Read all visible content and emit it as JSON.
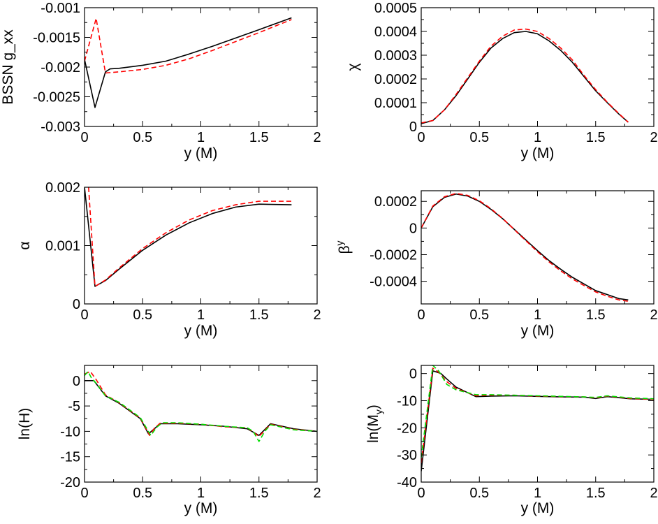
{
  "chart_data": [
    {
      "id": "gxx",
      "type": "line",
      "xlabel": "y (M)",
      "ylabel": "BSSN g_xx",
      "xlim": [
        0,
        2
      ],
      "ylim": [
        -0.003,
        -0.001
      ],
      "xticks": [
        0,
        0.5,
        1,
        1.5,
        2
      ],
      "yticks": [
        -0.003,
        -0.0025,
        -0.002,
        -0.0015,
        -0.001
      ],
      "xtick_labels": [
        "0",
        "0.5",
        "1",
        "1.5",
        "2"
      ],
      "ytick_labels": [
        "-0.003",
        "-0.0025",
        "-0.002",
        "-0.0015",
        "-0.001"
      ],
      "series": [
        {
          "name": "black",
          "color": "#000000",
          "dash": "",
          "x": [
            0,
            0.09,
            0.18,
            0.22,
            0.3,
            0.5,
            0.7,
            0.9,
            1.1,
            1.3,
            1.5,
            1.78
          ],
          "y": [
            -0.00187,
            -0.00268,
            -0.00208,
            -0.00203,
            -0.00202,
            -0.00197,
            -0.0019,
            -0.00178,
            -0.00165,
            -0.00151,
            -0.00137,
            -0.00117
          ]
        },
        {
          "name": "red",
          "color": "#ff0000",
          "dash": "7,4",
          "x": [
            0,
            0.1,
            0.18,
            0.3,
            0.5,
            0.7,
            0.9,
            1.1,
            1.3,
            1.5,
            1.78
          ],
          "y": [
            -0.0019,
            -0.00118,
            -0.0021,
            -0.00208,
            -0.00204,
            -0.00197,
            -0.00186,
            -0.00172,
            -0.00157,
            -0.00142,
            -0.0012
          ]
        }
      ]
    },
    {
      "id": "chi",
      "type": "line",
      "xlabel": "y (M)",
      "ylabel": "χ",
      "xlim": [
        0,
        2
      ],
      "ylim": [
        0,
        0.0005
      ],
      "xticks": [
        0,
        0.5,
        1,
        1.5,
        2
      ],
      "yticks": [
        0,
        0.0001,
        0.0002,
        0.0003,
        0.0004,
        0.0005
      ],
      "xtick_labels": [
        "0",
        "0.5",
        "1",
        "1.5",
        "2"
      ],
      "ytick_labels": [
        "0",
        "0.0001",
        "0.0002",
        "0.0003",
        "0.0004",
        "0.0005"
      ],
      "series": [
        {
          "name": "black",
          "color": "#000000",
          "dash": "",
          "x": [
            0,
            0.1,
            0.2,
            0.3,
            0.4,
            0.5,
            0.6,
            0.7,
            0.8,
            0.9,
            1.0,
            1.1,
            1.2,
            1.3,
            1.4,
            1.5,
            1.6,
            1.7,
            1.78
          ],
          "y": [
            1.2e-05,
            2.5e-05,
            7e-05,
            0.00013,
            0.0002,
            0.00027,
            0.00033,
            0.00037,
            0.000395,
            0.0004,
            0.00039,
            0.00036,
            0.00032,
            0.00027,
            0.00021,
            0.00015,
            0.0001,
            5.2e-05,
            1.8e-05
          ]
        },
        {
          "name": "red",
          "color": "#ff0000",
          "dash": "7,4",
          "x": [
            0,
            0.1,
            0.2,
            0.3,
            0.4,
            0.5,
            0.6,
            0.7,
            0.8,
            0.9,
            1.0,
            1.1,
            1.2,
            1.3,
            1.4,
            1.5,
            1.6,
            1.7,
            1.78
          ],
          "y": [
            1.5e-05,
            2.5e-05,
            7e-05,
            0.000135,
            0.000205,
            0.000275,
            0.000338,
            0.00038,
            0.000406,
            0.00041,
            0.0004,
            0.00037,
            0.00033,
            0.00028,
            0.000215,
            0.000155,
            0.000102,
            5.4e-05,
            1.8e-05
          ]
        }
      ]
    },
    {
      "id": "alpha",
      "type": "line",
      "xlabel": "y (M)",
      "ylabel": "α",
      "xlim": [
        0,
        2
      ],
      "ylim": [
        0,
        0.002
      ],
      "xticks": [
        0,
        0.5,
        1,
        1.5,
        2
      ],
      "yticks": [
        0,
        0.001,
        0.002
      ],
      "xtick_labels": [
        "0",
        "0.5",
        "1",
        "1.5",
        "2"
      ],
      "ytick_labels": [
        "0",
        "0.001",
        "0.002"
      ],
      "series": [
        {
          "name": "black",
          "color": "#000000",
          "dash": "",
          "x": [
            0,
            0.09,
            0.18,
            0.3,
            0.5,
            0.7,
            0.9,
            1.1,
            1.3,
            1.5,
            1.78
          ],
          "y": [
            0.002,
            0.0003,
            0.0004,
            0.0006,
            0.00092,
            0.00118,
            0.00139,
            0.00155,
            0.00166,
            0.00171,
            0.0017
          ]
        },
        {
          "name": "red",
          "color": "#ff0000",
          "dash": "7,4",
          "x": [
            0.035,
            0.09,
            0.18,
            0.3,
            0.5,
            0.7,
            0.9,
            1.1,
            1.3,
            1.5,
            1.78
          ],
          "y": [
            0.002,
            0.0003,
            0.00041,
            0.00062,
            0.00095,
            0.00122,
            0.00144,
            0.0016,
            0.0017,
            0.00176,
            0.00176
          ]
        }
      ]
    },
    {
      "id": "betay",
      "type": "line",
      "xlabel": "y (M)",
      "ylabel": "β",
      "ylabel_sup": "y",
      "xlim": [
        0,
        2
      ],
      "ylim": [
        -0.00057,
        0.00028
      ],
      "xticks": [
        0,
        0.5,
        1,
        1.5,
        2
      ],
      "yticks": [
        -0.0004,
        -0.0002,
        0,
        0.0002
      ],
      "xtick_labels": [
        "0",
        "0.5",
        "1",
        "1.5",
        "2"
      ],
      "ytick_labels": [
        "-0.0004",
        "-0.0002",
        "0",
        "0.0002"
      ],
      "series": [
        {
          "name": "black",
          "color": "#000000",
          "dash": "",
          "x": [
            0,
            0.1,
            0.2,
            0.3,
            0.4,
            0.5,
            0.6,
            0.7,
            0.8,
            0.9,
            1.0,
            1.1,
            1.2,
            1.3,
            1.4,
            1.5,
            1.6,
            1.7,
            1.78
          ],
          "y": [
            0,
            0.00016,
            0.00023,
            0.000255,
            0.00024,
            0.0002,
            0.00014,
            7e-05,
            -1e-05,
            -9e-05,
            -0.00017,
            -0.000245,
            -0.00031,
            -0.00037,
            -0.00042,
            -0.00047,
            -0.0005,
            -0.00053,
            -0.00054
          ]
        },
        {
          "name": "red",
          "color": "#ff0000",
          "dash": "7,4",
          "x": [
            0,
            0.1,
            0.2,
            0.3,
            0.4,
            0.5,
            0.6,
            0.7,
            0.8,
            0.9,
            1.0,
            1.1,
            1.2,
            1.3,
            1.4,
            1.5,
            1.6,
            1.7,
            1.78
          ],
          "y": [
            0,
            0.000165,
            0.000235,
            0.00026,
            0.000245,
            0.000205,
            0.000145,
            7.2e-05,
            -1.2e-05,
            -9.5e-05,
            -0.000178,
            -0.000255,
            -0.000322,
            -0.000382,
            -0.000432,
            -0.00048,
            -0.000512,
            -0.00054,
            -0.00055
          ]
        }
      ]
    },
    {
      "id": "lnH",
      "type": "line",
      "xlabel": "y (M)",
      "ylabel": "ln(H)",
      "xlim": [
        0,
        2
      ],
      "ylim": [
        -20,
        3
      ],
      "xticks": [
        0,
        0.5,
        1,
        1.5,
        2
      ],
      "yticks": [
        -20,
        -15,
        -10,
        -5,
        0
      ],
      "xtick_labels": [
        "0",
        "0.5",
        "1",
        "1.5",
        "2"
      ],
      "ytick_labels": [
        "-20",
        "-15",
        "-10",
        "-5",
        "0"
      ],
      "series": [
        {
          "name": "black",
          "color": "#000000",
          "dash": "",
          "x": [
            0,
            0.08,
            0.18,
            0.3,
            0.48,
            0.55,
            0.6,
            0.65,
            0.7,
            0.8,
            1.0,
            1.2,
            1.4,
            1.5,
            1.6,
            1.8,
            2.0
          ],
          "y": [
            0,
            0,
            -3,
            -4.5,
            -7.5,
            -10.5,
            -9.5,
            -8.5,
            -8.5,
            -8.5,
            -8.7,
            -9,
            -9.5,
            -10.8,
            -8.5,
            -9.5,
            -10
          ]
        },
        {
          "name": "red",
          "color": "#ff0000",
          "dash": "7,4",
          "x": [
            0,
            0.05,
            0.1,
            0.18,
            0.3,
            0.48,
            0.56,
            0.6,
            0.65,
            0.7,
            0.8,
            1.0,
            1.2,
            1.4,
            1.5,
            1.6,
            1.8,
            2.0
          ],
          "y": [
            1.3,
            1.8,
            0.2,
            -2.8,
            -4.4,
            -7.4,
            -10.8,
            -9.4,
            -8.4,
            -8.4,
            -8.4,
            -8.6,
            -9.1,
            -9.3,
            -11,
            -8.6,
            -9.6,
            -10
          ]
        },
        {
          "name": "green",
          "color": "#00dd00",
          "dash": "7,4",
          "x": [
            0,
            0.03,
            0.06,
            0.1,
            0.18,
            0.3,
            0.48,
            0.57,
            0.62,
            0.67,
            0.8,
            1.0,
            1.2,
            1.4,
            1.45,
            1.5,
            1.55,
            1.6,
            1.8,
            2.0
          ],
          "y": [
            1,
            1.8,
            0.5,
            -0.5,
            -3,
            -4.3,
            -7.3,
            -10.8,
            -9.2,
            -8.3,
            -8.3,
            -8.6,
            -9,
            -9.3,
            -10,
            -12,
            -10,
            -8.7,
            -9.7,
            -10
          ]
        }
      ]
    },
    {
      "id": "lnMy",
      "type": "line",
      "xlabel": "y (M)",
      "ylabel": "ln(M",
      "ylabel_sub": "y",
      "ylabel_end": ")",
      "xlim": [
        0,
        2
      ],
      "ylim": [
        -40,
        3
      ],
      "xticks": [
        0,
        0.5,
        1,
        1.5,
        2
      ],
      "yticks": [
        -40,
        -30,
        -20,
        -10,
        0
      ],
      "xtick_labels": [
        "0",
        "0.5",
        "1",
        "1.5",
        "2"
      ],
      "ytick_labels": [
        "-40",
        "-30",
        "-20",
        "-10",
        "0"
      ],
      "series": [
        {
          "name": "black",
          "color": "#000000",
          "dash": "",
          "x": [
            0,
            0.1,
            0.17,
            0.22,
            0.3,
            0.47,
            0.6,
            0.8,
            1.0,
            1.2,
            1.4,
            1.5,
            1.6,
            1.8,
            2.0
          ],
          "y": [
            -36,
            1,
            0,
            -2,
            -5,
            -8.5,
            -8.3,
            -8.2,
            -8.4,
            -8.6,
            -8.7,
            -9.2,
            -8.5,
            -9.3,
            -9.5
          ]
        },
        {
          "name": "red",
          "color": "#ff0000",
          "dash": "7,4",
          "x": [
            0,
            0.1,
            0.15,
            0.22,
            0.3,
            0.47,
            0.6,
            0.8,
            1.0,
            1.2,
            1.4,
            1.5,
            1.6,
            1.8,
            2.0
          ],
          "y": [
            -33,
            2,
            0.5,
            -3,
            -5.5,
            -8.2,
            -8,
            -8,
            -8.3,
            -8.5,
            -8.6,
            -9,
            -8.3,
            -9.2,
            -9.5
          ]
        },
        {
          "name": "green",
          "color": "#00dd00",
          "dash": "7,4",
          "x": [
            0,
            0.1,
            0.15,
            0.22,
            0.3,
            0.47,
            0.6,
            0.8,
            1.0,
            1.2,
            1.4,
            1.5,
            1.6,
            1.8,
            2.0
          ],
          "y": [
            -31,
            3,
            1,
            -4,
            -6,
            -7.8,
            -7.8,
            -8,
            -8.2,
            -8.4,
            -8.6,
            -8.8,
            -8.2,
            -9,
            -9.3
          ]
        }
      ]
    }
  ]
}
